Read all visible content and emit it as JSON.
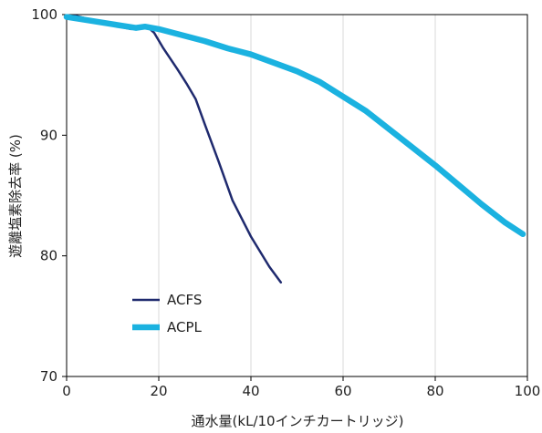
{
  "chart_data": {
    "type": "line",
    "title": "",
    "xlabel": "通水量(kL/10インチカートリッジ)",
    "ylabel": "遊離塩素除去率 (%)",
    "xlim": [
      0,
      100
    ],
    "ylim": [
      70,
      100
    ],
    "xticks": [
      0,
      20,
      40,
      60,
      80,
      100
    ],
    "yticks": [
      70,
      80,
      90,
      100
    ],
    "grid": "vertical",
    "legend_position": "lower-left",
    "series": [
      {
        "name": "ACFS",
        "color": "#1f2a6e",
        "x": [
          0,
          2,
          5,
          10,
          14,
          16,
          17.5,
          19,
          21,
          24,
          26,
          28,
          30,
          33,
          36,
          40,
          44,
          46.5
        ],
        "y": [
          99.8,
          99.9,
          99.6,
          99.1,
          98.8,
          98.9,
          99.0,
          98.5,
          97.2,
          95.5,
          94.3,
          93.0,
          90.9,
          87.8,
          84.6,
          81.6,
          79.1,
          77.8
        ]
      },
      {
        "name": "ACPL",
        "color": "#1bb2e0",
        "x": [
          0,
          5,
          10,
          15,
          17,
          20,
          25,
          30,
          35,
          40,
          45,
          50,
          55,
          60,
          65,
          70,
          75,
          80,
          85,
          90,
          95,
          99
        ],
        "y": [
          99.8,
          99.5,
          99.2,
          98.9,
          99.0,
          98.8,
          98.3,
          97.8,
          97.2,
          96.7,
          96.0,
          95.3,
          94.4,
          93.2,
          92.0,
          90.5,
          89.0,
          87.5,
          85.9,
          84.3,
          82.8,
          81.8
        ]
      }
    ]
  }
}
